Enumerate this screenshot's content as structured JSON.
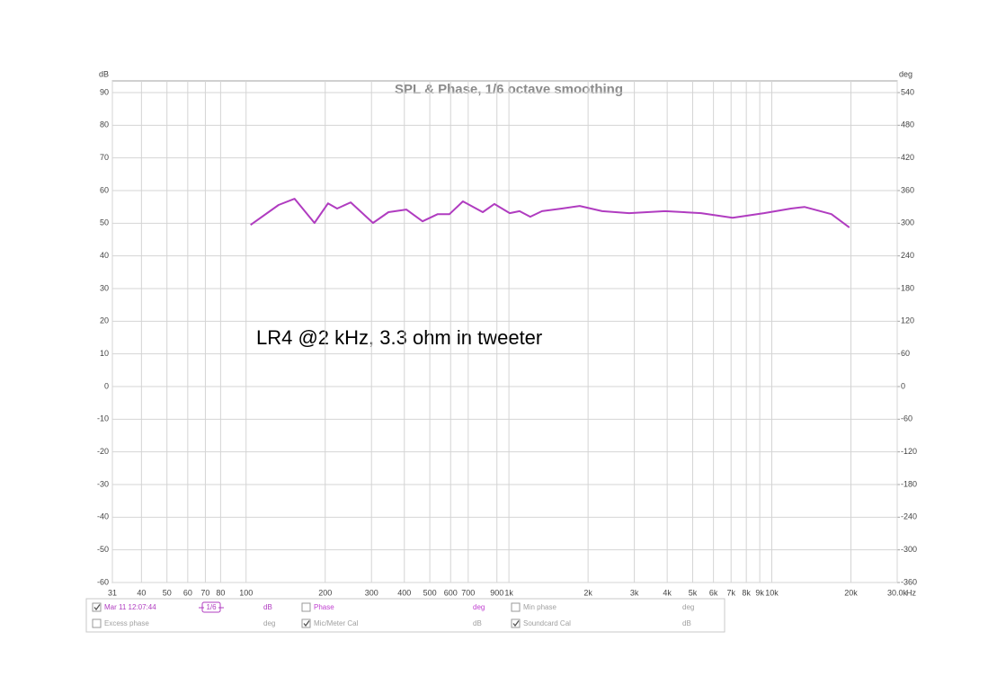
{
  "chart_data": {
    "type": "line",
    "title": "SPL & Phase, 1/6 octave smoothing",
    "annotation": "LR4 @2 kHz, 3.3 ohm in tweeter",
    "y_label": "dB",
    "y2_label": "deg",
    "x_label": "Hz",
    "xscale": "log",
    "grid": true,
    "xlim": [
      31,
      30000
    ],
    "xticks": [
      31,
      40,
      50,
      60,
      70,
      80,
      100,
      200,
      300,
      400,
      500,
      600,
      700,
      900,
      {
        "value": 1000,
        "label": "1k"
      },
      {
        "value": 2000,
        "label": "2k"
      },
      {
        "value": 3000,
        "label": "3k"
      },
      {
        "value": 4000,
        "label": "4k"
      },
      {
        "value": 5000,
        "label": "5k"
      },
      {
        "value": 6000,
        "label": "6k"
      },
      {
        "value": 7000,
        "label": "7k"
      },
      {
        "value": 8000,
        "label": "8k"
      },
      {
        "value": 9000,
        "label": "9k"
      },
      {
        "value": 10000,
        "label": "10k"
      },
      {
        "value": 20000,
        "label": "20k"
      },
      {
        "value": 30000,
        "label": "30.0k"
      }
    ],
    "ylim": [
      -60,
      90
    ],
    "yticks": [
      90,
      80,
      70,
      60,
      50,
      40,
      30,
      20,
      10,
      0,
      -10,
      -20,
      -30,
      -40,
      -50,
      -60
    ],
    "y2lim": [
      -360,
      540
    ],
    "y2ticks": [
      540,
      480,
      420,
      360,
      300,
      240,
      180,
      120,
      60,
      0,
      -60,
      -120,
      -180,
      -240,
      -300,
      -360
    ],
    "series": [
      {
        "name": "Mar 11 12:07:44",
        "color": "#b03cc0",
        "checked": true,
        "smoothing": "1/6",
        "unit": "dB",
        "x": [
          104,
          133,
          153,
          182,
          205,
          222,
          250,
          304,
          348,
          407,
          469,
          536,
          594,
          668,
          795,
          880,
          1007,
          1097,
          1205,
          1336,
          1589,
          1858,
          2263,
          2866,
          3926,
          5383,
          7096,
          9336,
          11830,
          13310,
          16860,
          19730
        ],
        "values": [
          49.5,
          55.6,
          57.5,
          50.1,
          56.1,
          54.5,
          56.4,
          50.1,
          53.4,
          54.2,
          50.6,
          52.8,
          52.8,
          56.7,
          53.4,
          55.9,
          53.1,
          53.7,
          52.0,
          53.7,
          54.5,
          55.3,
          53.7,
          53.1,
          53.7,
          53.1,
          51.7,
          53.1,
          54.5,
          55.0,
          52.8,
          48.7
        ]
      }
    ],
    "traces": [
      {
        "name": "Phase",
        "checked": false,
        "unit": "deg",
        "color": "#c040d0"
      },
      {
        "name": "Min phase",
        "checked": false,
        "unit": "deg",
        "color": "#a0a0a0"
      },
      {
        "name": "Excess phase",
        "checked": false,
        "unit": "deg",
        "color": "#a0a0a0"
      },
      {
        "name": "Mic/Meter Cal",
        "checked": true,
        "unit": "dB",
        "color": "#a0a0a0"
      },
      {
        "name": "Soundcard Cal",
        "checked": true,
        "unit": "dB",
        "color": "#a0a0a0"
      }
    ]
  }
}
